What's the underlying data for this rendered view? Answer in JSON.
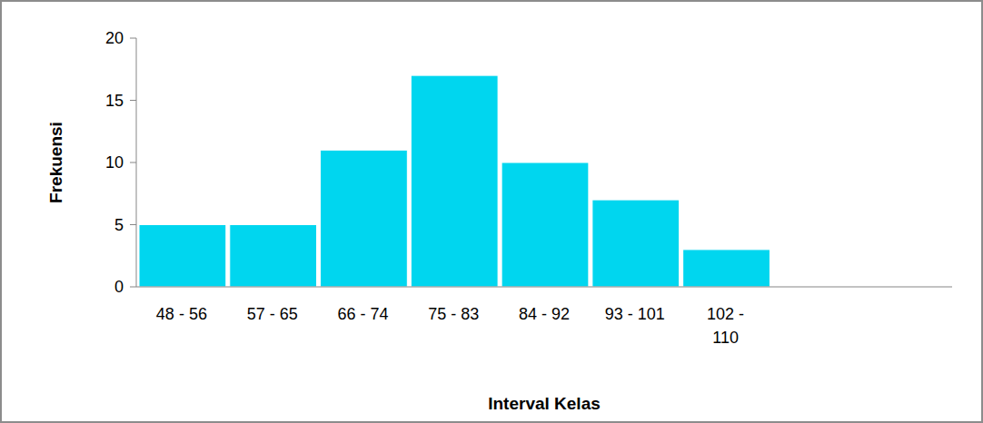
{
  "chart_data": {
    "type": "bar",
    "categories": [
      "48 - 56",
      "57 - 65",
      "66 - 74",
      "75 - 83",
      "84 - 92",
      "93 - 101",
      "102 - 110",
      null,
      null
    ],
    "values": [
      5,
      5,
      11,
      17,
      10,
      7,
      3,
      null,
      null
    ],
    "color": "#00d6ef",
    "x_label": "Interval Kelas",
    "y_label": "Frekuensi",
    "ylim": [
      0,
      20
    ],
    "yticks": [
      0,
      5,
      10,
      15,
      20
    ],
    "grid": false
  }
}
